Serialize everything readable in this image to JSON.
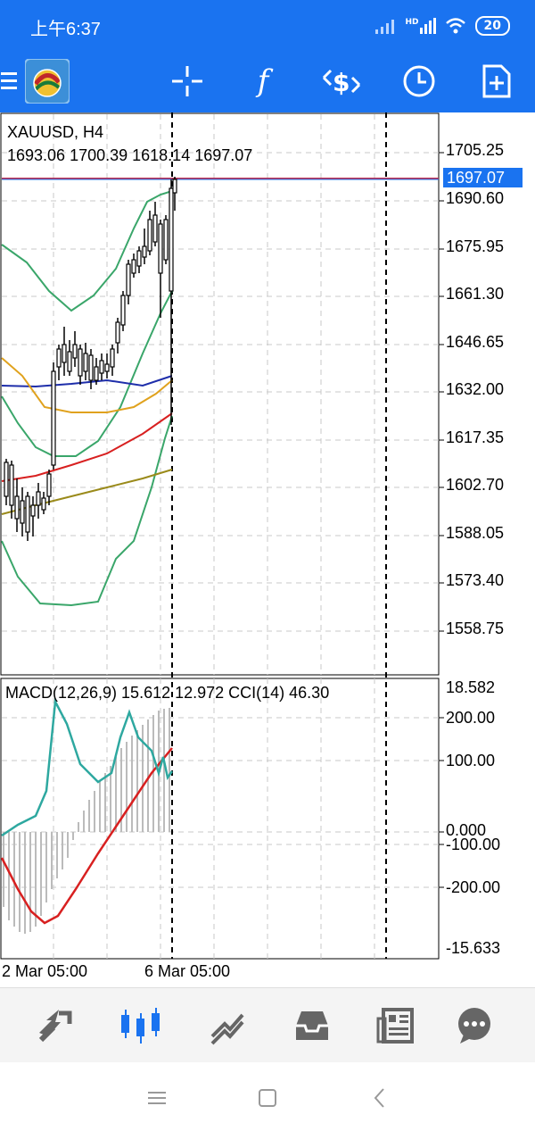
{
  "status_bar": {
    "time": "上午6:37",
    "network": "HD",
    "battery": "20",
    "icons": [
      "signal-weak-icon",
      "signal-hd-icon",
      "wifi-icon",
      "battery-icon"
    ]
  },
  "toolbar": {
    "buttons": [
      "menu-icon",
      "metatrader-logo",
      "crosshair-icon",
      "indicators-icon",
      "symbols-icon",
      "timeframe-clock-icon",
      "new-order-icon"
    ],
    "indicators_glyph": "f"
  },
  "chart": {
    "symbol": "XAUUSD, H4",
    "ohlc": "1693.06 1700.39 1618.14 1697.07",
    "current_price": "1697.07",
    "price_axis": [
      "1705.25",
      "1690.60",
      "1675.95",
      "1661.30",
      "1646.65",
      "1632.00",
      "1617.35",
      "1602.70",
      "1588.05",
      "1573.40",
      "1558.75"
    ],
    "indicator_label": "MACD(12,26,9) 15.612 12.972 CCI(14) 46.30",
    "indicator_axis": [
      "18.582",
      "200.00",
      "100.00",
      "0.000",
      "-100.00",
      "-200.00",
      "-15.633"
    ],
    "time_axis": [
      "2 Mar 05:00",
      "6 Mar 05:00"
    ],
    "colors": {
      "grid": "#c9c9c9",
      "candle": "#000000",
      "bollinger": "#3aa66a",
      "ma_blue": "#1e2eaa",
      "ma_orange": "#e0a21e",
      "ma_red": "#d82020",
      "ma_olive": "#9a8a1a",
      "macd_signal": "#d82020",
      "cci": "#2ea8a0",
      "macd_hist": "#bbbbbb",
      "price_tag": "#1a73f0"
    }
  },
  "bottom_nav": {
    "items": [
      "quotes-icon",
      "chart-icon",
      "trade-icon",
      "history-icon",
      "news-icon",
      "messages-icon"
    ],
    "active": "chart-icon"
  },
  "system_nav": {
    "items": [
      "menu-lines-icon",
      "home-square-icon",
      "back-icon"
    ]
  }
}
